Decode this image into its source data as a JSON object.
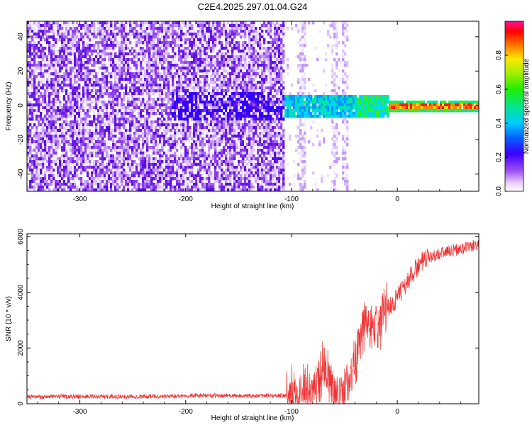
{
  "title": "C2E4.2025.297.01.04.G24",
  "chart_data": [
    {
      "type": "heatmap",
      "name": "spectrogram",
      "xlabel": "Height of straight line (km)",
      "ylabel": "Frequency (Hz)",
      "xlim": [
        -350,
        77
      ],
      "ylim": [
        -50,
        49
      ],
      "x_ticks": [
        -300,
        -200,
        -100,
        0
      ],
      "y_ticks": [
        -40,
        -20,
        0,
        20,
        40
      ],
      "colorbar": {
        "label": "Normalized spectral amplitude",
        "range": [
          0.0,
          1.0
        ],
        "ticks": [
          0.0,
          0.2,
          0.4,
          0.6,
          0.8
        ],
        "tick_labels": [
          "0.0",
          "0.2",
          "0.4",
          "0.6",
          "0.8"
        ]
      },
      "features": {
        "noise_region_km": [
          -350,
          -107
        ],
        "sparse_region_km": [
          -107,
          -47
        ],
        "signal_band_center_hz": 0,
        "signal_start_km": -215,
        "strong_signal_start_km": -107
      }
    },
    {
      "type": "line",
      "name": "snr",
      "xlabel": "Height of straight line (km)",
      "ylabel": "SNR (10 * v/v)",
      "xlim": [
        -350,
        77
      ],
      "ylim": [
        0,
        6100
      ],
      "x_ticks": [
        -300,
        -200,
        -100,
        0
      ],
      "y_ticks": [
        0,
        2000,
        4000,
        6000
      ],
      "color": "#ee3333",
      "series": [
        {
          "name": "SNR",
          "x": [
            -350,
            -300,
            -250,
            -210,
            -200,
            -150,
            -110,
            -100,
            -90,
            -80,
            -75,
            -70,
            -65,
            -60,
            -55,
            -50,
            -45,
            -40,
            -35,
            -30,
            -25,
            -20,
            -15,
            -10,
            -5,
            0,
            5,
            10,
            15,
            20,
            25,
            30,
            40,
            50,
            60,
            70,
            77
          ],
          "y": [
            250,
            260,
            260,
            270,
            300,
            280,
            290,
            320,
            450,
            600,
            850,
            1250,
            950,
            500,
            280,
            360,
            850,
            1600,
            2400,
            2850,
            2650,
            2750,
            3050,
            3400,
            3550,
            3800,
            4100,
            4400,
            4700,
            4950,
            5100,
            5250,
            5400,
            5500,
            5550,
            5650,
            5700
          ]
        }
      ]
    }
  ]
}
